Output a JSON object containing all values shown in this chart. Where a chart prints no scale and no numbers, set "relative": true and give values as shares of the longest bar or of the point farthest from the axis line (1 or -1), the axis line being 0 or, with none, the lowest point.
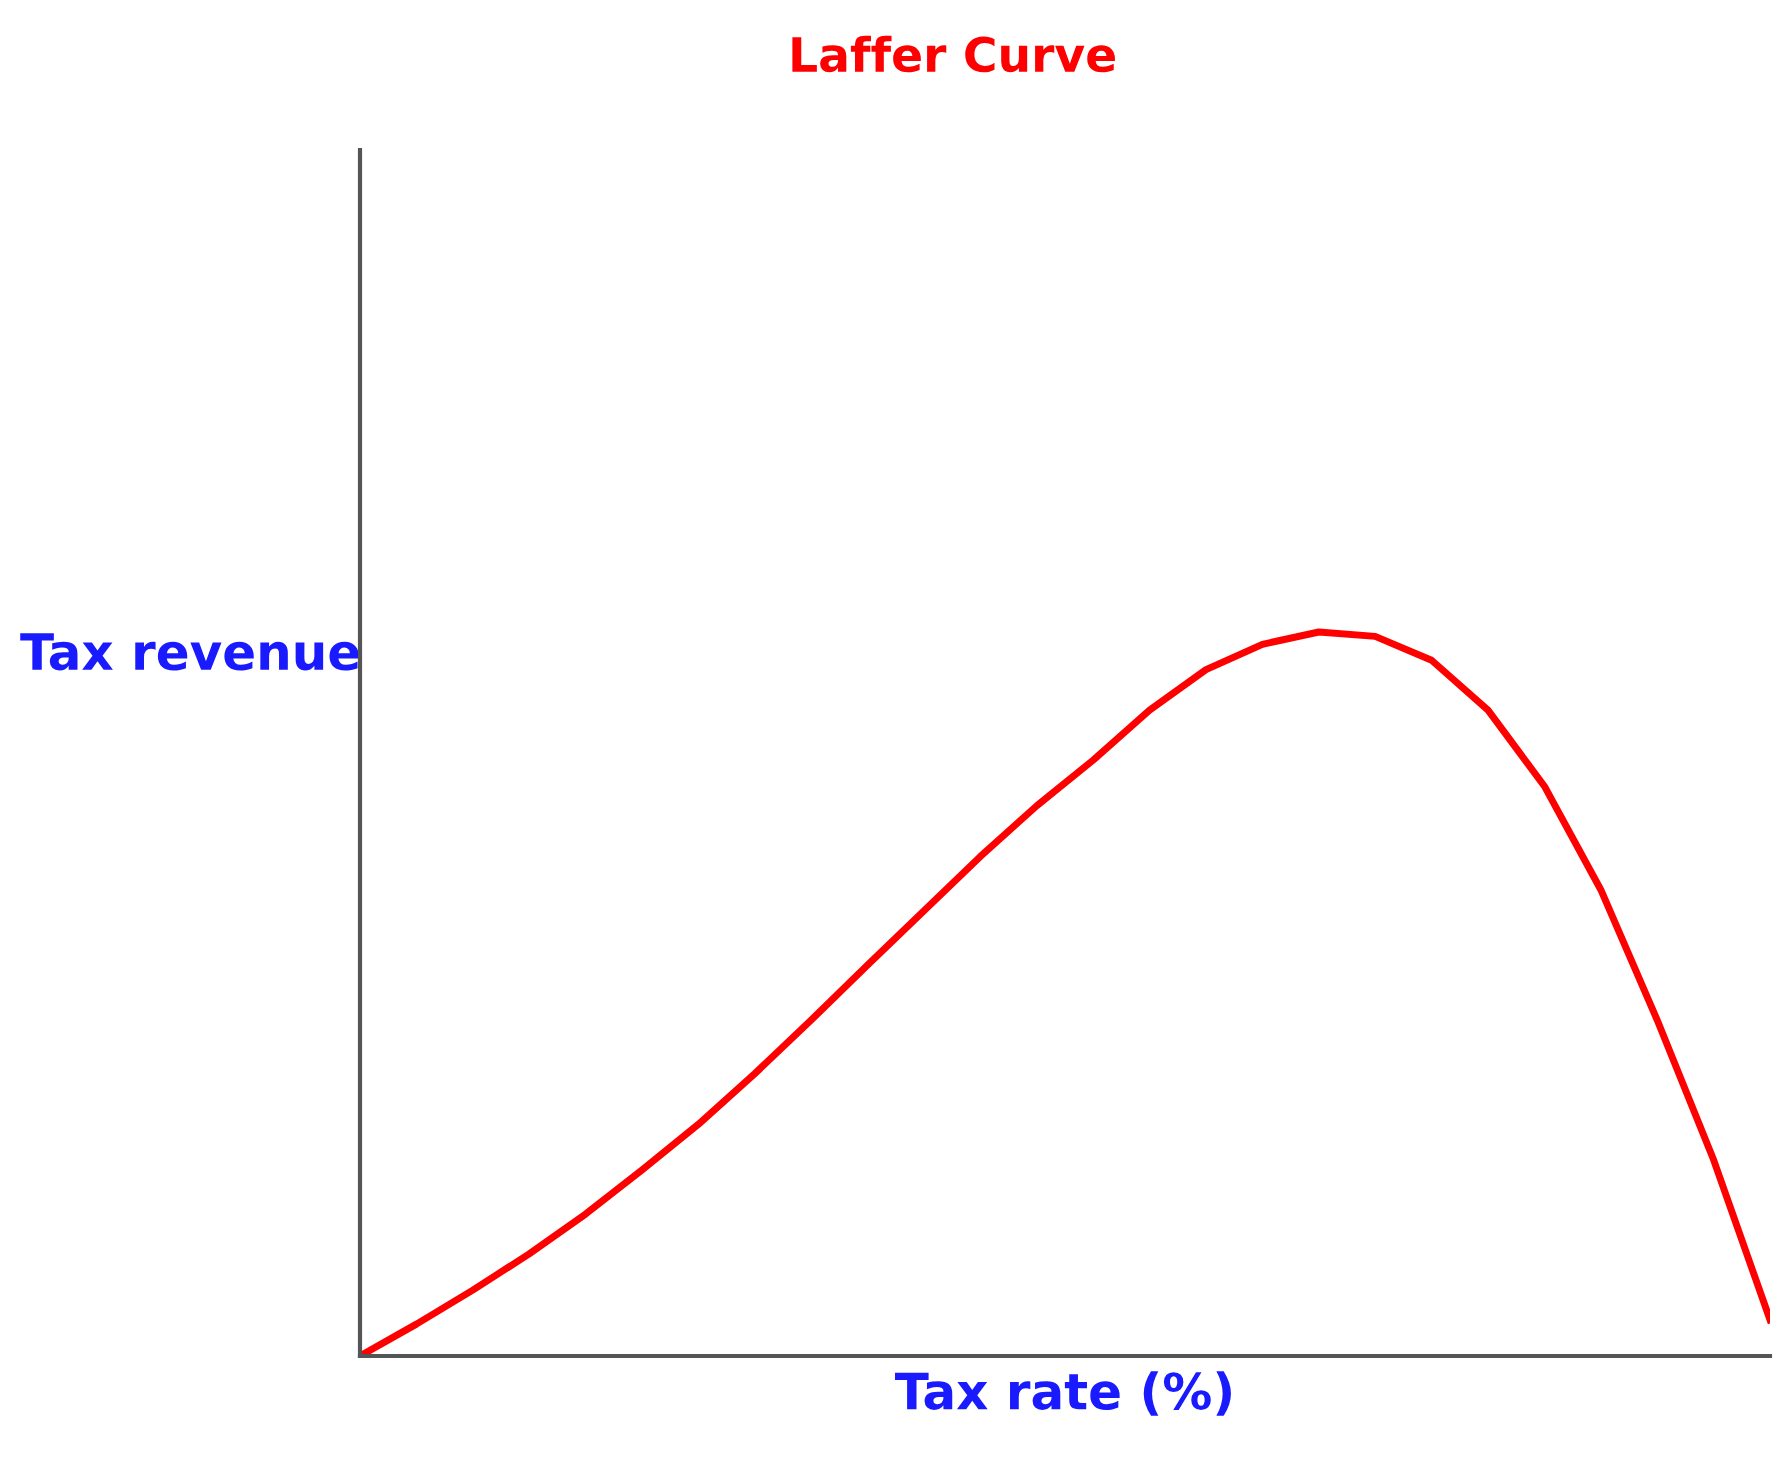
{
  "chart_data": {
    "type": "line",
    "title": "Laffer Curve",
    "xlabel": "Tax rate (%)",
    "ylabel": "Tax revenue",
    "relative": true,
    "categories": [
      null,
      null,
      null,
      null,
      null,
      null,
      null,
      null,
      null,
      null,
      null,
      null,
      null,
      null,
      null,
      null,
      null,
      null,
      null,
      null,
      null,
      null,
      null,
      null,
      null,
      null
    ],
    "series": [
      {
        "color": "#ff0000",
        "values": [
          0,
          0.044,
          0.091,
          0.141,
          0.196,
          0.257,
          0.32,
          0.39,
          0.464,
          0.54,
          0.615,
          0.69,
          0.76,
          0.823,
          0.892,
          0.948,
          0.983,
          1.0,
          0.994,
          0.961,
          0.892,
          0.787,
          0.644,
          0.464,
          0.271,
          0.05
        ]
      }
    ],
    "grid": false,
    "legend": false,
    "marker": "none",
    "line_style": "solid"
  }
}
